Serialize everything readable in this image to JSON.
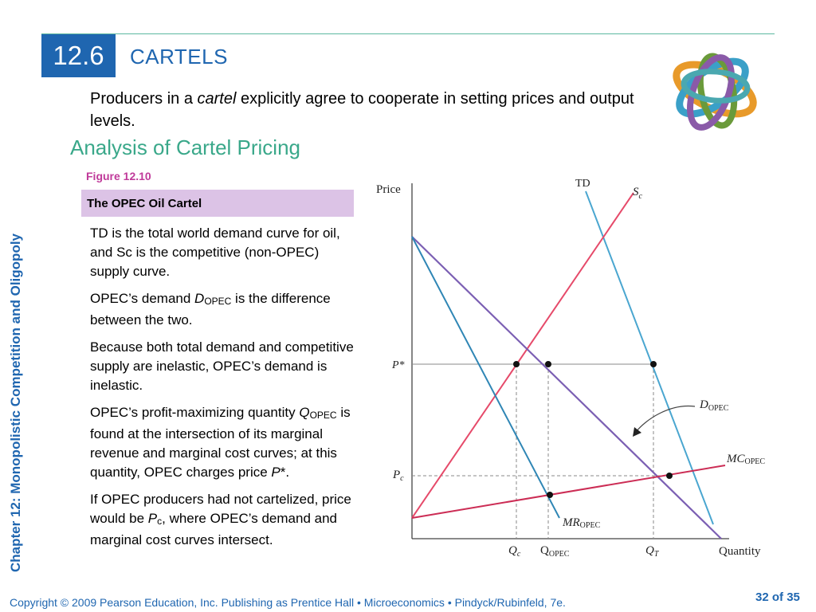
{
  "header": {
    "section_number": "12.6",
    "title": "CARTELS"
  },
  "intro": {
    "before": "Producers in a ",
    "em": "cartel",
    "after": " explicitly agree to cooperate in setting prices and output levels."
  },
  "subheading": "Analysis of Cartel Pricing",
  "side_title": "Chapter 12:  Monopolistic Competition and Oligopoly",
  "figure": {
    "label": "Figure 12.10",
    "caption": "The OPEC Oil Cartel",
    "p1": "TD is the total world demand curve for oil, and Sc is the competitive (non-OPEC) supply curve.",
    "p2": {
      "a": "OPEC’s demand ",
      "sym": "D",
      "sub": "OPEC",
      "b": " is the difference between the two."
    },
    "p3": "Because both total demand and competitive supply are inelastic, OPEC’s demand is inelastic.",
    "p4": {
      "a": "OPEC’s profit-maximizing quantity ",
      "sym": "Q",
      "sub": "OPEC",
      "b": " is found at the intersection of its marginal revenue and marginal cost curves; at this quantity, OPEC charges price ",
      "sym2": "P",
      "c": "*."
    },
    "p5": {
      "a": "If OPEC producers had not cartelized, price would be ",
      "sym": "P",
      "sub": "c",
      "b": ", where OPEC’s demand and marginal cost curves intersect."
    }
  },
  "diagram": {
    "y_axis_label": "Price",
    "x_axis_label": "Quantity",
    "td_label": "TD",
    "sc_label": {
      "main": "S",
      "sub": "c"
    },
    "dopec_label": {
      "main": "D",
      "sub": "OPEC"
    },
    "mcopec_label": {
      "main": "MC",
      "sub": "OPEC"
    },
    "mropec_label": {
      "main": "MR",
      "sub": "OPEC"
    },
    "pstar_label": "P*",
    "pc_label": {
      "main": "P",
      "sub": "c"
    },
    "qc_label": {
      "main": "Q",
      "sub": "c"
    },
    "qopec_label": {
      "main": "Q",
      "sub": "OPEC"
    },
    "qt_label": {
      "main": "Q",
      "sub": "T"
    },
    "colors": {
      "td": "#4aa6d0",
      "sc": "#e64a6a",
      "dopec": "#7b5fb3",
      "mcopec": "#cc2d55",
      "mropec": "#2f86b5",
      "guide": "#888888"
    }
  },
  "footer": "Copyright © 2009 Pearson Education, Inc. Publishing as Prentice Hall  •  Microeconomics  •  Pindyck/Rubinfeld, 7e.",
  "page": {
    "current": "32",
    "sep": " of ",
    "total": "35"
  }
}
